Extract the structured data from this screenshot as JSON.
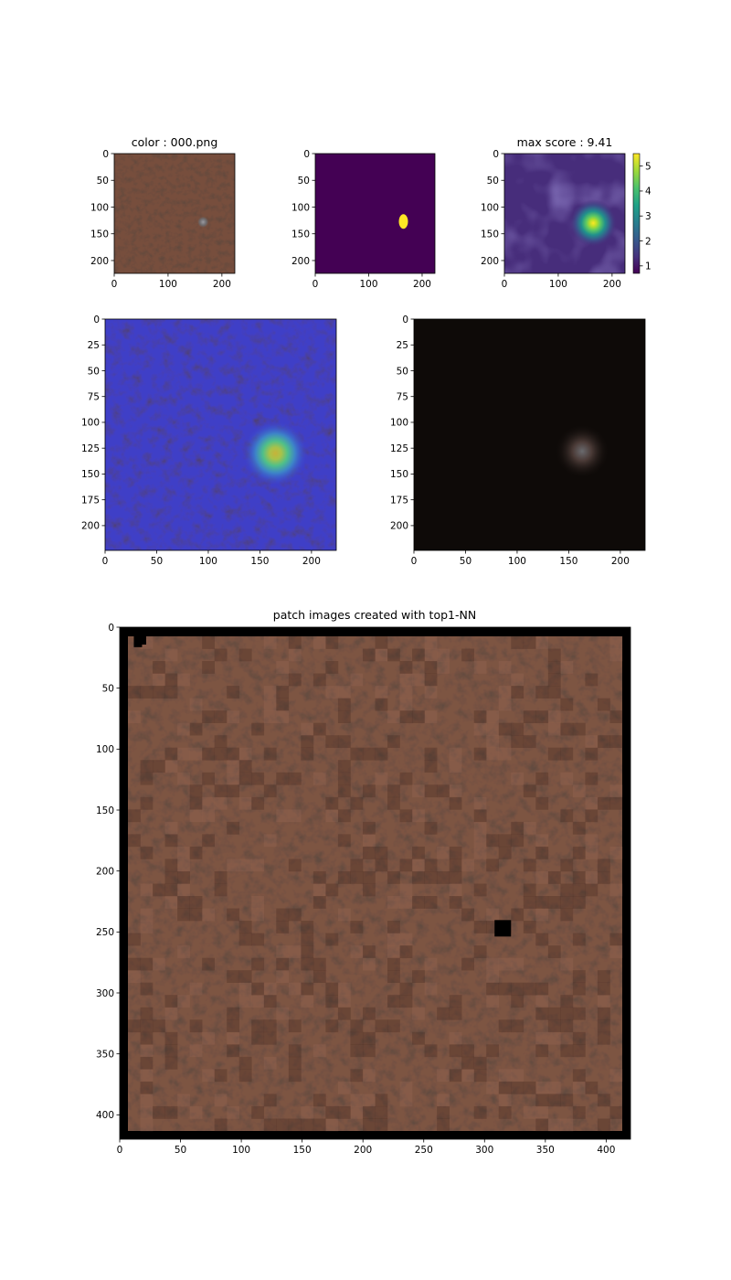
{
  "figure": {
    "background": "#ffffff"
  },
  "chart_data": [
    {
      "id": "input",
      "type": "image",
      "title": "color : 000.png",
      "xlim": [
        0,
        224
      ],
      "ylim": [
        224,
        0
      ],
      "xticks": [
        0,
        100,
        200
      ],
      "yticks": [
        0,
        50,
        100,
        150,
        200
      ],
      "content": "leather texture with small grey defect",
      "defect_center": [
        165,
        128
      ],
      "base_color": "#7a5140"
    },
    {
      "id": "mask",
      "type": "image",
      "title": "",
      "xlim": [
        0,
        224
      ],
      "ylim": [
        224,
        0
      ],
      "xticks": [
        0,
        100,
        200
      ],
      "yticks": [
        0,
        50,
        100,
        150,
        200
      ],
      "content": "binary ground-truth mask",
      "background_color": "#440154",
      "mask_color": "#fde725",
      "blob_center": [
        165,
        127
      ]
    },
    {
      "id": "score",
      "type": "heatmap",
      "title": "max score : 9.41",
      "xlim": [
        0,
        224
      ],
      "ylim": [
        224,
        0
      ],
      "xticks": [
        0,
        100,
        200
      ],
      "yticks": [
        0,
        50,
        100,
        150,
        200
      ],
      "peak_center": [
        165,
        130
      ],
      "colormap": "viridis",
      "colorbar": {
        "min": 0.7,
        "max": 5.5,
        "ticks": [
          1,
          2,
          3,
          4,
          5
        ]
      }
    },
    {
      "id": "overlay",
      "type": "heatmap",
      "title": "",
      "xlim": [
        0,
        224
      ],
      "ylim": [
        224,
        0
      ],
      "xticks": [
        0,
        50,
        100,
        150,
        200
      ],
      "yticks": [
        0,
        25,
        50,
        75,
        100,
        125,
        150,
        175,
        200
      ],
      "content": "score heatmap (jet) blended over input image",
      "peak_center": [
        165,
        130
      ]
    },
    {
      "id": "masked",
      "type": "image",
      "title": "",
      "xlim": [
        0,
        224
      ],
      "ylim": [
        224,
        0
      ],
      "xticks": [
        0,
        50,
        100,
        150,
        200
      ],
      "yticks": [
        0,
        25,
        50,
        75,
        100,
        125,
        150,
        175,
        200
      ],
      "content": "input image weighted by anomaly score",
      "peak_center": [
        163,
        128
      ]
    },
    {
      "id": "patches",
      "type": "image",
      "title": "patch images created with top1-NN",
      "xlim": [
        0,
        420
      ],
      "ylim": [
        420,
        0
      ],
      "xticks": [
        0,
        50,
        100,
        150,
        200,
        250,
        300,
        350,
        400
      ],
      "yticks": [
        0,
        50,
        100,
        150,
        200,
        250,
        300,
        350,
        400
      ],
      "content": "mosaic of nearest-neighbour leather patches with black border",
      "border_color": "#000000",
      "patch_color": "#7d5443",
      "black_patches": [
        [
          15,
          7
        ],
        [
          315,
          247
        ]
      ]
    }
  ]
}
